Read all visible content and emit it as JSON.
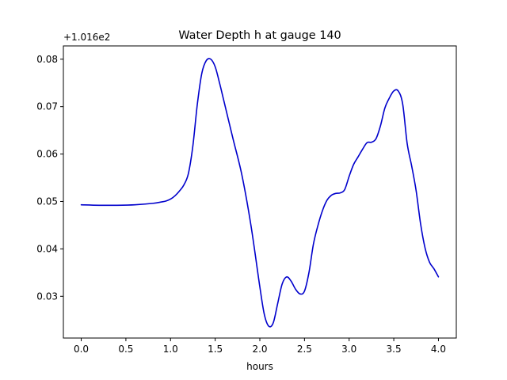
{
  "chart_data": {
    "type": "line",
    "title": "Water Depth h at gauge 140",
    "xlabel": "hours",
    "ylabel": "",
    "offset_label": "+1.016e2",
    "xlim": [
      -0.2,
      4.2
    ],
    "ylim": [
      0.0212,
      0.0828
    ],
    "xticks": [
      0.0,
      0.5,
      1.0,
      1.5,
      2.0,
      2.5,
      3.0,
      3.5,
      4.0
    ],
    "xtick_labels": [
      "0.0",
      "0.5",
      "1.0",
      "1.5",
      "2.0",
      "2.5",
      "3.0",
      "3.5",
      "4.0"
    ],
    "yticks": [
      0.03,
      0.04,
      0.05,
      0.06,
      0.07,
      0.08
    ],
    "ytick_labels": [
      "0.03",
      "0.04",
      "0.05",
      "0.06",
      "0.07",
      "0.08"
    ],
    "grid": false,
    "legend": "none",
    "colors": {
      "line": "#0000cc",
      "axes": "#000000",
      "background": "#ffffff"
    },
    "series": [
      {
        "x": [
          0.0,
          0.2,
          0.4,
          0.6,
          0.8,
          0.9,
          0.95,
          1.0,
          1.05,
          1.1,
          1.15,
          1.2,
          1.25,
          1.3,
          1.35,
          1.4,
          1.45,
          1.5,
          1.55,
          1.6,
          1.7,
          1.8,
          1.9,
          2.0,
          2.05,
          2.1,
          2.15,
          2.2,
          2.25,
          2.3,
          2.35,
          2.4,
          2.45,
          2.5,
          2.55,
          2.6,
          2.65,
          2.7,
          2.75,
          2.8,
          2.85,
          2.9,
          2.95,
          3.0,
          3.05,
          3.1,
          3.15,
          3.2,
          3.25,
          3.3,
          3.35,
          3.4,
          3.45,
          3.5,
          3.55,
          3.6,
          3.65,
          3.7,
          3.75,
          3.8,
          3.85,
          3.9,
          3.95,
          4.0
        ],
        "y": [
          0.0493,
          0.0492,
          0.0492,
          0.0493,
          0.0496,
          0.0499,
          0.0501,
          0.0505,
          0.0512,
          0.0522,
          0.0535,
          0.0559,
          0.0617,
          0.0705,
          0.077,
          0.0797,
          0.08,
          0.0784,
          0.0749,
          0.071,
          0.0632,
          0.0555,
          0.045,
          0.032,
          0.0262,
          0.0237,
          0.0244,
          0.0285,
          0.0326,
          0.0341,
          0.0332,
          0.0315,
          0.0305,
          0.0311,
          0.035,
          0.041,
          0.0449,
          0.048,
          0.0502,
          0.0513,
          0.0517,
          0.0518,
          0.0525,
          0.0553,
          0.0578,
          0.0594,
          0.061,
          0.0624,
          0.0625,
          0.0632,
          0.0659,
          0.0697,
          0.0718,
          0.0733,
          0.0733,
          0.0705,
          0.0622,
          0.0575,
          0.0523,
          0.0453,
          0.0402,
          0.0372,
          0.0358,
          0.0341
        ]
      }
    ]
  }
}
